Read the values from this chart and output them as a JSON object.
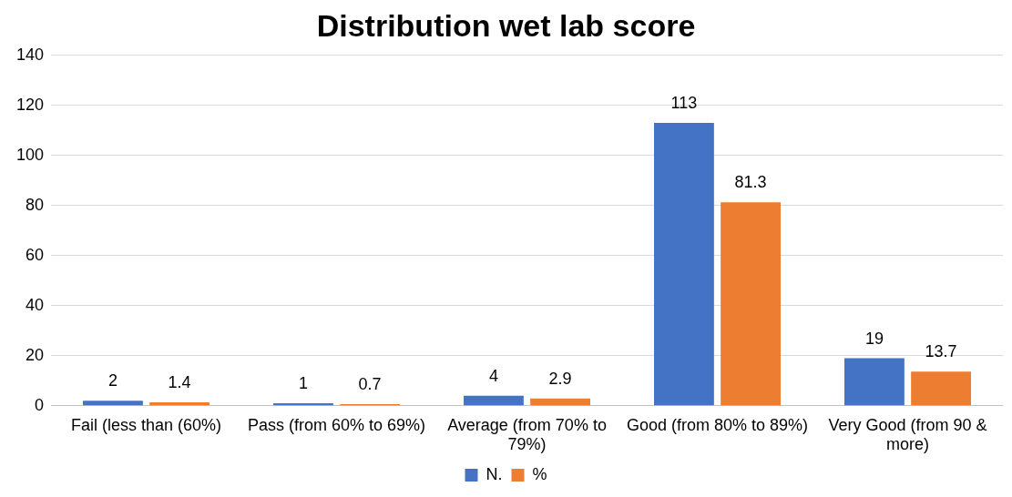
{
  "chart_data": {
    "type": "bar",
    "title": "Distribution wet lab score",
    "categories": [
      "Fail (less than (60%)",
      "Pass (from 60% to 69%)",
      "Average (from 70% to 79%)",
      "Good (from 80% to 89%)",
      "Very Good (from 90 & more)"
    ],
    "series": [
      {
        "name": "N.",
        "color": "#4472c4",
        "values": [
          2,
          1,
          4,
          113,
          19
        ]
      },
      {
        "name": "%",
        "color": "#ed7d31",
        "values": [
          1.4,
          0.7,
          2.9,
          81.3,
          13.7
        ]
      }
    ],
    "ylim": [
      0,
      140
    ],
    "yticks": [
      0,
      20,
      40,
      60,
      80,
      100,
      120,
      140
    ],
    "grid": "y",
    "legend": "bottom",
    "data_labels": true
  }
}
